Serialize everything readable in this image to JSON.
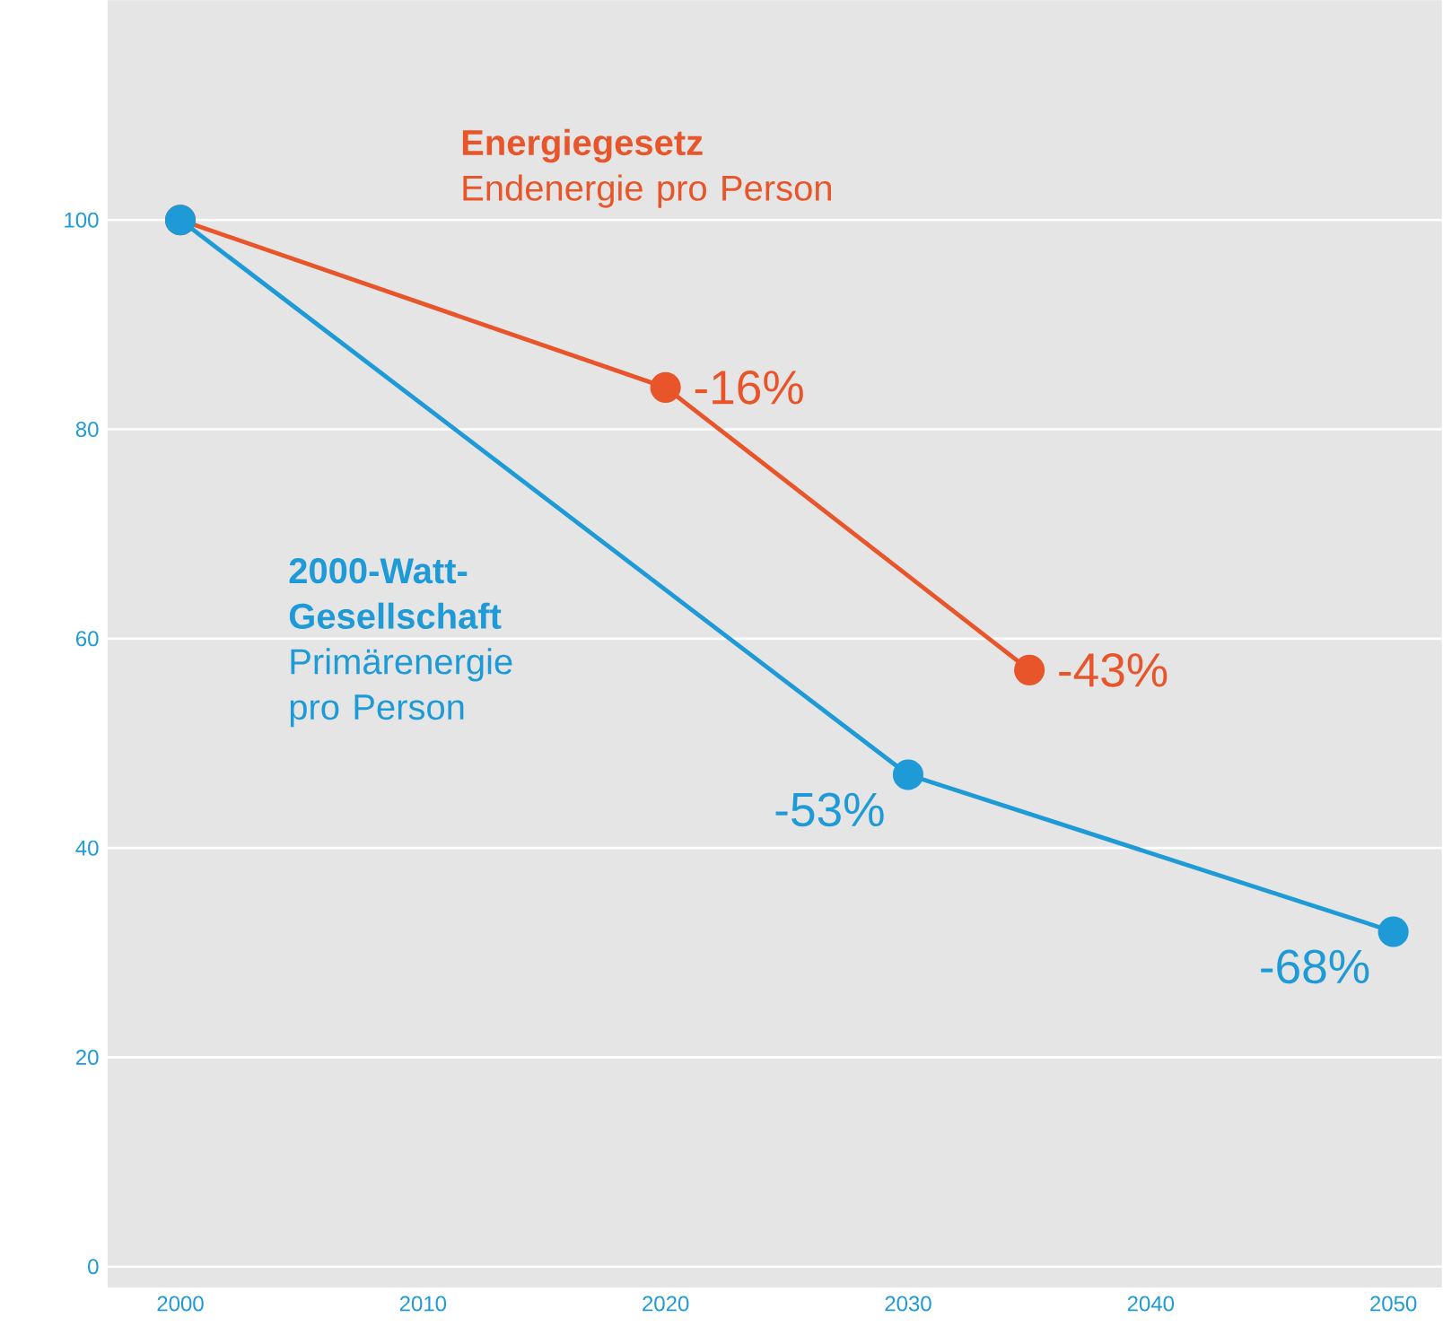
{
  "chart_data": {
    "type": "line",
    "series": [
      {
        "name": "Energiegesetz",
        "color": "#e8552a",
        "x": [
          2000,
          2020,
          2035
        ],
        "values": [
          100,
          84,
          57
        ]
      },
      {
        "name": "2000-Watt-Gesellschaft",
        "color": "#1e9ad6",
        "x": [
          2000,
          2030,
          2050
        ],
        "values": [
          100,
          47,
          32
        ]
      }
    ],
    "annotations": [
      "Endenergie pro Person",
      "Primärenergie pro Person",
      {
        "text": "-16%",
        "x": 2020,
        "y": 84
      },
      {
        "text": "-43%",
        "x": 2035,
        "y": 57
      },
      {
        "text": "-53%",
        "x": 2030,
        "y": 47
      },
      {
        "text": "-68%",
        "x": 2050,
        "y": 32
      }
    ],
    "xlim": [
      1997,
      2052
    ],
    "ylim": [
      -2,
      121
    ],
    "xticks": [
      2000,
      2010,
      2020,
      2030,
      2040,
      2050
    ],
    "yticks": [
      0,
      20,
      40,
      60,
      80,
      100
    ],
    "grid": "y",
    "marker": "circle",
    "line_style": "solid"
  }
}
